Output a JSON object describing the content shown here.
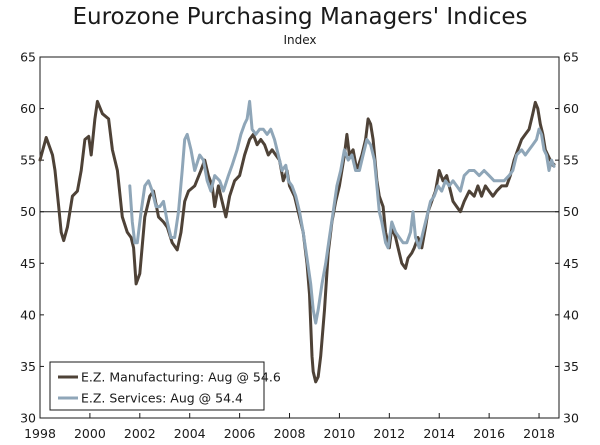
{
  "chart_data": {
    "type": "line",
    "title": "Eurozone Purchasing Managers' Indices",
    "subtitle": "Index",
    "xlabel": "",
    "ylabel": "",
    "xlim": [
      1998,
      2018.8
    ],
    "ylim": [
      30,
      65
    ],
    "y_ticks": [
      30,
      35,
      40,
      45,
      50,
      55,
      60,
      65
    ],
    "x_ticks": [
      1998,
      2000,
      2002,
      2004,
      2006,
      2008,
      2010,
      2012,
      2014,
      2016,
      2018
    ],
    "x_tick_labels": [
      "1998",
      "2000",
      "2002",
      "2004",
      "2006",
      "2008",
      "2010",
      "2012",
      "2014",
      "2016",
      "2018"
    ],
    "reference_line": 50,
    "grid": false,
    "legend_position": "bottom-left",
    "series": [
      {
        "name": "E.Z. Manufacturing: Aug @ 54.6",
        "color": "#4e4237",
        "points": [
          [
            1998.0,
            55.0
          ],
          [
            1998.25,
            57.2
          ],
          [
            1998.5,
            55.5
          ],
          [
            1998.6,
            54.0
          ],
          [
            1998.75,
            50.5
          ],
          [
            1998.85,
            48.0
          ],
          [
            1998.95,
            47.2
          ],
          [
            1999.1,
            48.5
          ],
          [
            1999.3,
            51.5
          ],
          [
            1999.5,
            52.0
          ],
          [
            1999.65,
            54.0
          ],
          [
            1999.8,
            57.0
          ],
          [
            1999.95,
            57.3
          ],
          [
            2000.05,
            55.5
          ],
          [
            2000.2,
            59.0
          ],
          [
            2000.3,
            60.7
          ],
          [
            2000.5,
            59.5
          ],
          [
            2000.75,
            59.0
          ],
          [
            2000.9,
            56.0
          ],
          [
            2001.1,
            54.0
          ],
          [
            2001.3,
            49.5
          ],
          [
            2001.5,
            48.0
          ],
          [
            2001.65,
            47.5
          ],
          [
            2001.75,
            46.5
          ],
          [
            2001.85,
            43.0
          ],
          [
            2002.0,
            44.0
          ],
          [
            2002.2,
            49.5
          ],
          [
            2002.4,
            51.5
          ],
          [
            2002.55,
            52.0
          ],
          [
            2002.75,
            49.5
          ],
          [
            2002.95,
            49.0
          ],
          [
            2003.1,
            48.5
          ],
          [
            2003.3,
            47.0
          ],
          [
            2003.5,
            46.3
          ],
          [
            2003.65,
            48.0
          ],
          [
            2003.8,
            51.0
          ],
          [
            2003.95,
            52.0
          ],
          [
            2004.2,
            52.5
          ],
          [
            2004.45,
            54.0
          ],
          [
            2004.6,
            55.0
          ],
          [
            2004.75,
            53.5
          ],
          [
            2004.9,
            52.5
          ],
          [
            2005.0,
            50.5
          ],
          [
            2005.15,
            52.5
          ],
          [
            2005.3,
            51.0
          ],
          [
            2005.45,
            49.5
          ],
          [
            2005.6,
            51.5
          ],
          [
            2005.8,
            53.0
          ],
          [
            2006.0,
            53.5
          ],
          [
            2006.2,
            55.5
          ],
          [
            2006.4,
            57.0
          ],
          [
            2006.55,
            57.5
          ],
          [
            2006.7,
            56.5
          ],
          [
            2006.85,
            57.0
          ],
          [
            2007.0,
            56.5
          ],
          [
            2007.15,
            55.5
          ],
          [
            2007.3,
            56.0
          ],
          [
            2007.45,
            55.5
          ],
          [
            2007.6,
            55.0
          ],
          [
            2007.75,
            53.0
          ],
          [
            2007.9,
            54.0
          ],
          [
            2008.0,
            52.5
          ],
          [
            2008.2,
            51.5
          ],
          [
            2008.4,
            49.5
          ],
          [
            2008.55,
            48.0
          ],
          [
            2008.7,
            45.0
          ],
          [
            2008.8,
            42.0
          ],
          [
            2008.9,
            36.0
          ],
          [
            2008.95,
            34.5
          ],
          [
            2009.05,
            33.5
          ],
          [
            2009.15,
            34.0
          ],
          [
            2009.25,
            36.0
          ],
          [
            2009.4,
            40.5
          ],
          [
            2009.55,
            46.0
          ],
          [
            2009.7,
            49.0
          ],
          [
            2009.85,
            51.0
          ],
          [
            2010.0,
            52.5
          ],
          [
            2010.2,
            55.5
          ],
          [
            2010.3,
            57.5
          ],
          [
            2010.4,
            55.5
          ],
          [
            2010.55,
            56.0
          ],
          [
            2010.7,
            54.0
          ],
          [
            2010.9,
            55.5
          ],
          [
            2011.05,
            57.0
          ],
          [
            2011.15,
            59.0
          ],
          [
            2011.25,
            58.5
          ],
          [
            2011.35,
            57.0
          ],
          [
            2011.5,
            53.0
          ],
          [
            2011.6,
            51.5
          ],
          [
            2011.75,
            50.5
          ],
          [
            2011.85,
            48.0
          ],
          [
            2012.0,
            46.5
          ],
          [
            2012.1,
            48.5
          ],
          [
            2012.25,
            47.5
          ],
          [
            2012.4,
            46.0
          ],
          [
            2012.5,
            45.0
          ],
          [
            2012.65,
            44.5
          ],
          [
            2012.75,
            45.5
          ],
          [
            2012.9,
            46.0
          ],
          [
            2013.0,
            46.5
          ],
          [
            2013.15,
            47.5
          ],
          [
            2013.3,
            46.5
          ],
          [
            2013.45,
            48.5
          ],
          [
            2013.55,
            50.0
          ],
          [
            2013.7,
            51.0
          ],
          [
            2013.85,
            52.0
          ],
          [
            2014.0,
            54.0
          ],
          [
            2014.15,
            53.0
          ],
          [
            2014.3,
            53.5
          ],
          [
            2014.45,
            52.0
          ],
          [
            2014.55,
            51.0
          ],
          [
            2014.7,
            50.5
          ],
          [
            2014.85,
            50.0
          ],
          [
            2015.0,
            51.0
          ],
          [
            2015.2,
            52.0
          ],
          [
            2015.4,
            51.5
          ],
          [
            2015.55,
            52.5
          ],
          [
            2015.7,
            51.5
          ],
          [
            2015.85,
            52.5
          ],
          [
            2016.0,
            52.0
          ],
          [
            2016.15,
            51.5
          ],
          [
            2016.3,
            52.0
          ],
          [
            2016.5,
            52.5
          ],
          [
            2016.7,
            52.5
          ],
          [
            2016.85,
            53.5
          ],
          [
            2017.0,
            55.0
          ],
          [
            2017.15,
            56.0
          ],
          [
            2017.3,
            57.0
          ],
          [
            2017.45,
            57.5
          ],
          [
            2017.6,
            58.0
          ],
          [
            2017.75,
            59.5
          ],
          [
            2017.85,
            60.6
          ],
          [
            2017.95,
            60.0
          ],
          [
            2018.05,
            58.5
          ],
          [
            2018.15,
            57.5
          ],
          [
            2018.25,
            56.0
          ],
          [
            2018.35,
            55.5
          ],
          [
            2018.45,
            55.0
          ],
          [
            2018.55,
            54.5
          ],
          [
            2018.6,
            54.6
          ]
        ]
      },
      {
        "name": "E.Z. Services: Aug @ 54.4",
        "color": "#8fa6b8",
        "points": [
          [
            2001.6,
            52.5
          ],
          [
            2001.7,
            49.0
          ],
          [
            2001.8,
            47.0
          ],
          [
            2001.9,
            47.0
          ],
          [
            2002.05,
            50.0
          ],
          [
            2002.2,
            52.5
          ],
          [
            2002.35,
            53.0
          ],
          [
            2002.5,
            52.0
          ],
          [
            2002.65,
            50.5
          ],
          [
            2002.8,
            50.5
          ],
          [
            2002.95,
            51.0
          ],
          [
            2003.1,
            49.0
          ],
          [
            2003.25,
            47.5
          ],
          [
            2003.4,
            47.5
          ],
          [
            2003.55,
            50.0
          ],
          [
            2003.7,
            54.0
          ],
          [
            2003.8,
            57.0
          ],
          [
            2003.9,
            57.5
          ],
          [
            2004.05,
            56.0
          ],
          [
            2004.2,
            54.0
          ],
          [
            2004.4,
            55.5
          ],
          [
            2004.55,
            55.0
          ],
          [
            2004.7,
            53.0
          ],
          [
            2004.85,
            52.0
          ],
          [
            2005.0,
            53.5
          ],
          [
            2005.2,
            53.0
          ],
          [
            2005.35,
            52.0
          ],
          [
            2005.55,
            53.5
          ],
          [
            2005.7,
            54.5
          ],
          [
            2005.9,
            56.0
          ],
          [
            2006.05,
            57.5
          ],
          [
            2006.2,
            58.5
          ],
          [
            2006.3,
            59.0
          ],
          [
            2006.4,
            60.7
          ],
          [
            2006.5,
            58.0
          ],
          [
            2006.65,
            57.5
          ],
          [
            2006.8,
            58.0
          ],
          [
            2006.95,
            58.0
          ],
          [
            2007.1,
            57.5
          ],
          [
            2007.25,
            58.0
          ],
          [
            2007.4,
            57.0
          ],
          [
            2007.55,
            55.5
          ],
          [
            2007.7,
            54.0
          ],
          [
            2007.85,
            54.5
          ],
          [
            2007.95,
            53.0
          ],
          [
            2008.1,
            52.5
          ],
          [
            2008.25,
            51.5
          ],
          [
            2008.4,
            50.0
          ],
          [
            2008.55,
            48.0
          ],
          [
            2008.7,
            45.5
          ],
          [
            2008.85,
            43.0
          ],
          [
            2008.95,
            40.5
          ],
          [
            2009.05,
            39.2
          ],
          [
            2009.15,
            40.5
          ],
          [
            2009.3,
            43.0
          ],
          [
            2009.45,
            45.0
          ],
          [
            2009.6,
            47.5
          ],
          [
            2009.75,
            50.0
          ],
          [
            2009.9,
            52.5
          ],
          [
            2010.05,
            54.0
          ],
          [
            2010.2,
            56.0
          ],
          [
            2010.35,
            55.0
          ],
          [
            2010.5,
            55.5
          ],
          [
            2010.65,
            54.0
          ],
          [
            2010.8,
            54.0
          ],
          [
            2010.95,
            55.5
          ],
          [
            2011.1,
            57.0
          ],
          [
            2011.25,
            56.5
          ],
          [
            2011.4,
            55.0
          ],
          [
            2011.5,
            52.5
          ],
          [
            2011.6,
            50.0
          ],
          [
            2011.7,
            49.0
          ],
          [
            2011.85,
            47.0
          ],
          [
            2011.95,
            46.5
          ],
          [
            2012.1,
            49.0
          ],
          [
            2012.25,
            48.0
          ],
          [
            2012.4,
            47.5
          ],
          [
            2012.55,
            47.0
          ],
          [
            2012.7,
            47.0
          ],
          [
            2012.85,
            48.0
          ],
          [
            2012.95,
            50.0
          ],
          [
            2013.05,
            47.5
          ],
          [
            2013.2,
            46.5
          ],
          [
            2013.35,
            48.0
          ],
          [
            2013.5,
            49.5
          ],
          [
            2013.65,
            51.0
          ],
          [
            2013.8,
            51.5
          ],
          [
            2013.95,
            52.5
          ],
          [
            2014.1,
            52.0
          ],
          [
            2014.25,
            53.0
          ],
          [
            2014.4,
            52.5
          ],
          [
            2014.55,
            53.0
          ],
          [
            2014.7,
            52.5
          ],
          [
            2014.85,
            52.0
          ],
          [
            2015.0,
            53.5
          ],
          [
            2015.2,
            54.0
          ],
          [
            2015.4,
            54.0
          ],
          [
            2015.6,
            53.5
          ],
          [
            2015.8,
            54.0
          ],
          [
            2016.0,
            53.5
          ],
          [
            2016.2,
            53.0
          ],
          [
            2016.4,
            53.0
          ],
          [
            2016.6,
            53.0
          ],
          [
            2016.8,
            53.5
          ],
          [
            2016.95,
            54.0
          ],
          [
            2017.1,
            55.5
          ],
          [
            2017.3,
            56.0
          ],
          [
            2017.45,
            55.5
          ],
          [
            2017.6,
            56.0
          ],
          [
            2017.75,
            56.5
          ],
          [
            2017.9,
            57.0
          ],
          [
            2018.0,
            58.0
          ],
          [
            2018.1,
            57.5
          ],
          [
            2018.2,
            56.0
          ],
          [
            2018.3,
            55.5
          ],
          [
            2018.4,
            54.0
          ],
          [
            2018.5,
            55.0
          ],
          [
            2018.6,
            54.4
          ]
        ]
      }
    ]
  }
}
